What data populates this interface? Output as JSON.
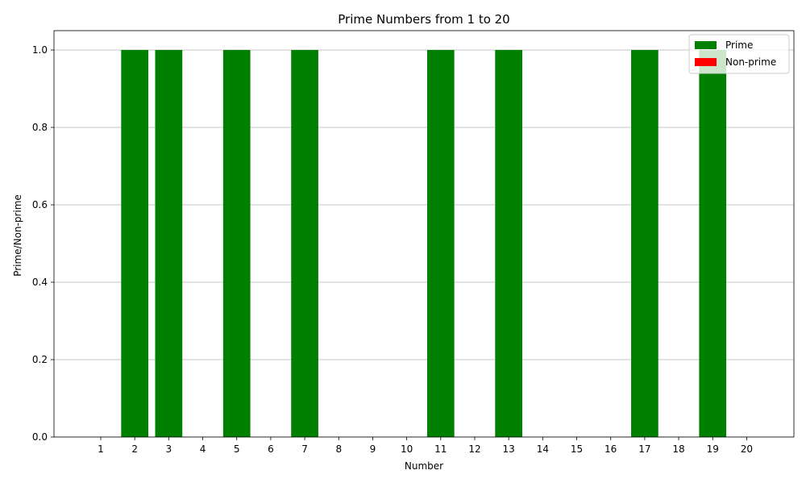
{
  "chart_data": {
    "type": "bar",
    "title": "Prime Numbers from 1 to 20",
    "xlabel": "Number",
    "ylabel": "Prime/Non-prime",
    "categories": [
      "1",
      "2",
      "3",
      "4",
      "5",
      "6",
      "7",
      "8",
      "9",
      "10",
      "11",
      "12",
      "13",
      "14",
      "15",
      "16",
      "17",
      "18",
      "19",
      "20"
    ],
    "series": [
      {
        "name": "Prime",
        "color": "#008000",
        "values": [
          0,
          1,
          1,
          0,
          1,
          0,
          1,
          0,
          0,
          0,
          1,
          0,
          1,
          0,
          0,
          0,
          1,
          0,
          1,
          0
        ]
      },
      {
        "name": "Non-prime",
        "color": "#ff0000",
        "values": [
          0,
          0,
          0,
          0,
          0,
          0,
          0,
          0,
          0,
          0,
          0,
          0,
          0,
          0,
          0,
          0,
          0,
          0,
          0,
          0
        ]
      }
    ],
    "ylim": [
      0,
      1.05
    ],
    "yticks": [
      "0.0",
      "0.2",
      "0.4",
      "0.6",
      "0.8",
      "1.0"
    ],
    "ytick_values": [
      0,
      0.2,
      0.4,
      0.6,
      0.8,
      1.0
    ],
    "grid": "horizontal",
    "legend_position": "upper right"
  }
}
